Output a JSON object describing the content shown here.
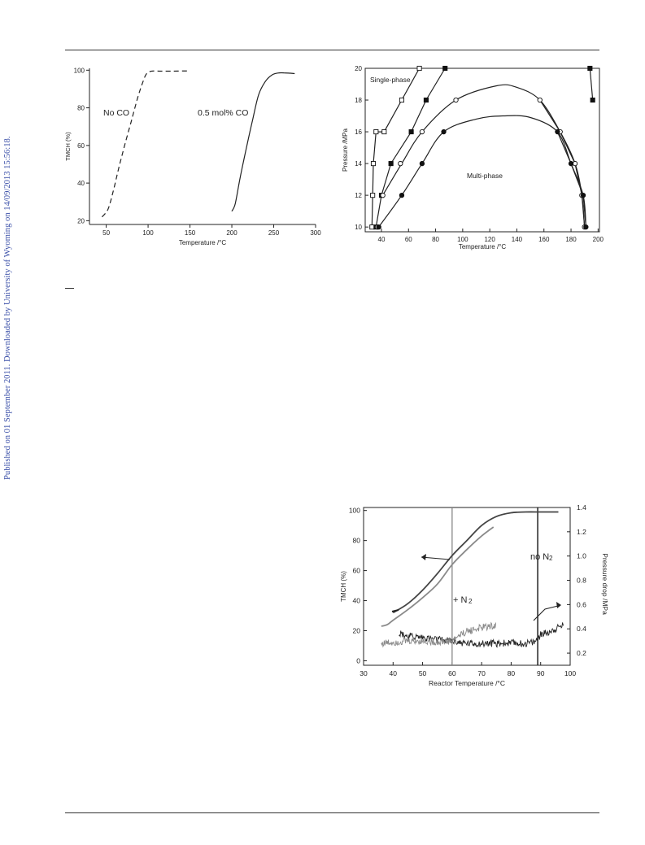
{
  "side_note": "Published on 01 September 2011. Downloaded by University of Wyoming on 14/09/2013 15:56:18.",
  "chart_data": [
    {
      "type": "line",
      "xlabel": "Temperature /°C",
      "ylabel": "TMCH (%)",
      "xlim": [
        30,
        300
      ],
      "ylim": [
        18,
        101
      ],
      "xticks": [
        50,
        100,
        150,
        200,
        250,
        300
      ],
      "yticks": [
        20,
        40,
        60,
        80,
        100
      ],
      "annotations": [
        "No CO",
        "0.5 mol% CO"
      ],
      "series": [
        {
          "name": "No CO",
          "dashed": true,
          "x": [
            45,
            52,
            58,
            65,
            72,
            80,
            88,
            94,
            98,
            104,
            115,
            130,
            145,
            150
          ],
          "y": [
            22,
            26,
            35,
            48,
            60,
            73,
            86,
            94,
            98,
            99.5,
            99.5,
            99.5,
            99.6,
            99.3
          ]
        },
        {
          "name": "0.5 mol% CO",
          "dashed": false,
          "x": [
            200,
            204,
            210,
            218,
            225,
            232,
            240,
            248,
            255,
            262,
            270,
            275
          ],
          "y": [
            25,
            29,
            43,
            60,
            74,
            87,
            94,
            97.5,
            98.5,
            98.6,
            98.4,
            98.2
          ]
        }
      ]
    },
    {
      "type": "line",
      "xlabel": "Temperature /°C",
      "ylabel": "Pressure /MPa",
      "xlim": [
        28,
        201
      ],
      "ylim": [
        9.7,
        20
      ],
      "xticks": [
        40,
        60,
        80,
        100,
        120,
        140,
        160,
        180,
        200
      ],
      "yticks": [
        10,
        12,
        14,
        16,
        18,
        20
      ],
      "annotations": [
        "Single-phase",
        "Multi-phase"
      ],
      "series": [
        {
          "marker": "open-square",
          "x": [
            33,
            33.5,
            34,
            36,
            42,
            55,
            68
          ],
          "y": [
            10,
            12,
            14,
            16,
            16,
            18,
            20
          ]
        },
        {
          "marker": "filled-square",
          "x": [
            36,
            40,
            47,
            62,
            73,
            87
          ],
          "y": [
            10,
            12,
            14,
            16,
            18,
            20
          ]
        },
        {
          "marker": "open-circle",
          "x": [
            37,
            41,
            54,
            70,
            95
          ],
          "y": [
            10,
            12,
            14,
            16,
            18
          ]
        },
        {
          "marker": "filled-circle",
          "x": [
            38,
            55,
            70,
            86
          ],
          "y": [
            10,
            12,
            14,
            16
          ]
        },
        {
          "marker": "open-circle",
          "x": [
            157,
            172,
            183,
            188,
            190
          ],
          "y": [
            18,
            16,
            14,
            12,
            10
          ]
        },
        {
          "marker": "filled-circle",
          "x": [
            170,
            180,
            189,
            191
          ],
          "y": [
            16,
            14,
            12,
            10
          ]
        },
        {
          "marker": "filled-square",
          "x": [
            194,
            196
          ],
          "y": [
            20,
            18
          ]
        }
      ],
      "curves": [
        {
          "x": [
            41,
            55,
            70,
            95,
            125,
            140,
            157,
            172,
            183,
            188,
            190
          ],
          "y": [
            12,
            14,
            16,
            18,
            18.9,
            18.8,
            18,
            16,
            14,
            12,
            10
          ]
        },
        {
          "x": [
            38,
            55,
            70,
            86,
            110,
            130,
            150,
            170,
            180,
            189,
            191
          ],
          "y": [
            10,
            12,
            14,
            16,
            16.8,
            17,
            16.9,
            16,
            14,
            12,
            10
          ]
        }
      ]
    },
    {
      "type": "line",
      "xlabel": "Reactor Temperature /°C",
      "ylabel": "TMCH (%)",
      "y2label": "Pressure drop /MPa",
      "xlim": [
        30,
        100
      ],
      "ylim": [
        -3,
        102
      ],
      "y2lim": [
        0.1,
        1.4
      ],
      "xticks": [
        30,
        40,
        50,
        60,
        70,
        80,
        90,
        100
      ],
      "yticks": [
        0,
        20,
        40,
        60,
        80,
        100
      ],
      "y2ticks": [
        0.2,
        0.4,
        0.6,
        0.8,
        1.0,
        1.2,
        1.4
      ],
      "annotations": [
        "+ N",
        "2",
        "no N",
        "2"
      ],
      "vlines": [
        60,
        89
      ],
      "series": [
        {
          "name": "TMCH no N2",
          "color": "#444444",
          "x": [
            40,
            45,
            50,
            55,
            60,
            65,
            70,
            75,
            80,
            85,
            90,
            96
          ],
          "y": [
            32,
            38,
            47,
            58,
            70,
            80,
            90,
            96,
            98.5,
            99,
            99,
            99
          ]
        },
        {
          "name": "TMCH + N2",
          "color": "#8a8a8a",
          "x": [
            36,
            38,
            40,
            45,
            50,
            55,
            60,
            65,
            70,
            74
          ],
          "y": [
            23,
            24,
            27,
            34,
            42,
            51,
            64,
            74,
            83,
            89
          ]
        },
        {
          "name": "Pressure drop no N2",
          "color": "#222222",
          "axis": "y2",
          "x": [
            42,
            45,
            50,
            55,
            60,
            65,
            70,
            75,
            80,
            85,
            88,
            90,
            93,
            96,
            98
          ],
          "y": [
            0.37,
            0.34,
            0.33,
            0.31,
            0.3,
            0.28,
            0.28,
            0.28,
            0.28,
            0.28,
            0.29,
            0.35,
            0.38,
            0.41,
            0.44
          ]
        },
        {
          "name": "Pressure drop + N2",
          "color": "#888888",
          "axis": "y2",
          "x": [
            36,
            40,
            45,
            50,
            55,
            60,
            62,
            65,
            70,
            75
          ],
          "y": [
            0.28,
            0.29,
            0.3,
            0.3,
            0.29,
            0.3,
            0.34,
            0.38,
            0.41,
            0.43
          ]
        }
      ]
    }
  ]
}
